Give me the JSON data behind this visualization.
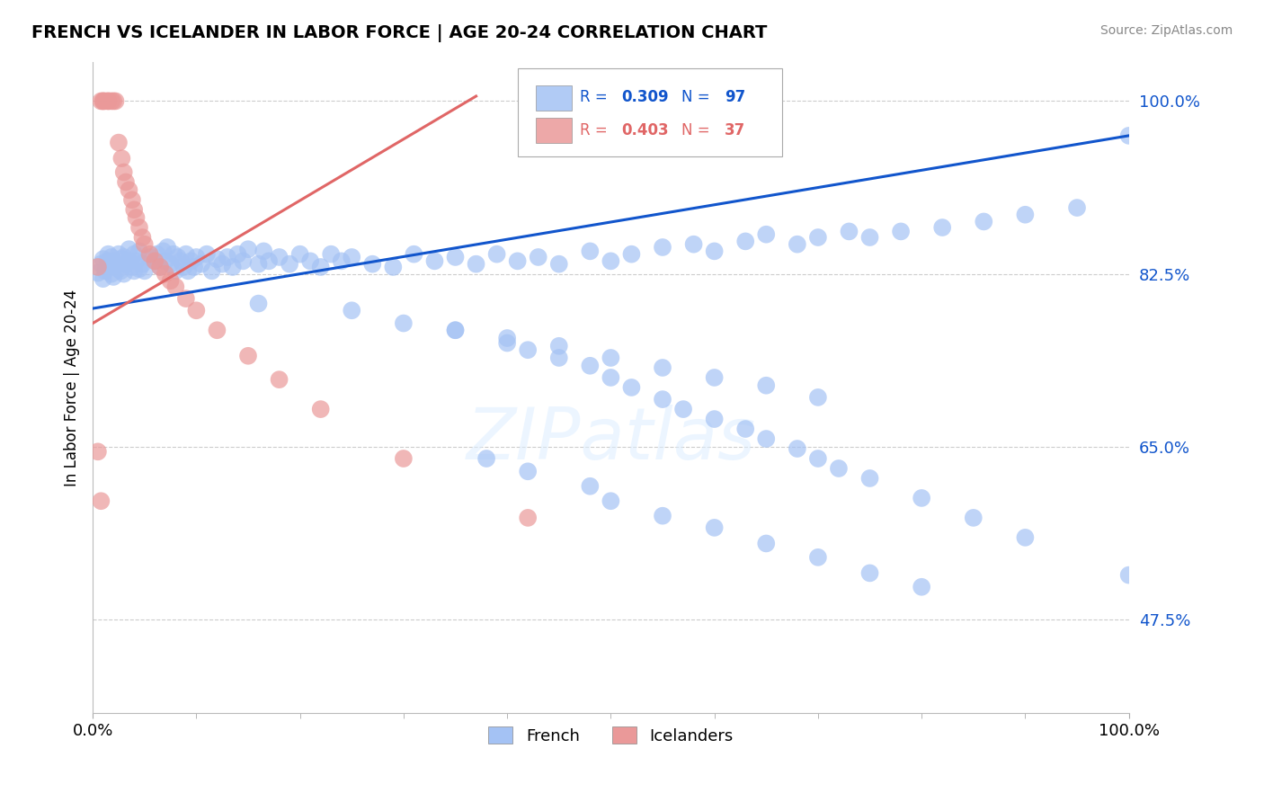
{
  "title": "FRENCH VS ICELANDER IN LABOR FORCE | AGE 20-24 CORRELATION CHART",
  "source": "Source: ZipAtlas.com",
  "ylabel": "In Labor Force | Age 20-24",
  "xlim": [
    0.0,
    1.0
  ],
  "ylim": [
    0.38,
    1.04
  ],
  "yticks": [
    0.475,
    0.65,
    0.825,
    1.0
  ],
  "ytick_labels": [
    "47.5%",
    "65.0%",
    "82.5%",
    "100.0%"
  ],
  "xtick_labels": [
    "0.0%",
    "100.0%"
  ],
  "xtick_positions": [
    0.0,
    1.0
  ],
  "legend_labels": [
    "French",
    "Icelanders"
  ],
  "blue_R": 0.309,
  "blue_N": 97,
  "pink_R": 0.403,
  "pink_N": 37,
  "blue_color": "#a4c2f4",
  "pink_color": "#ea9999",
  "blue_line_color": "#1155cc",
  "pink_line_color": "#e06666",
  "blue_line": [
    0.0,
    0.79,
    1.0,
    0.965
  ],
  "pink_line": [
    0.0,
    0.775,
    0.37,
    1.005
  ],
  "blue_points_x": [
    0.005,
    0.008,
    0.01,
    0.01,
    0.012,
    0.014,
    0.015,
    0.015,
    0.018,
    0.018,
    0.02,
    0.02,
    0.022,
    0.025,
    0.025,
    0.027,
    0.028,
    0.03,
    0.03,
    0.032,
    0.035,
    0.035,
    0.038,
    0.04,
    0.04,
    0.042,
    0.045,
    0.045,
    0.048,
    0.05,
    0.055,
    0.06,
    0.062,
    0.065,
    0.068,
    0.07,
    0.072,
    0.075,
    0.078,
    0.08,
    0.082,
    0.085,
    0.088,
    0.09,
    0.092,
    0.095,
    0.098,
    0.1,
    0.105,
    0.11,
    0.115,
    0.12,
    0.125,
    0.13,
    0.135,
    0.14,
    0.145,
    0.15,
    0.16,
    0.165,
    0.17,
    0.18,
    0.19,
    0.2,
    0.21,
    0.22,
    0.23,
    0.24,
    0.25,
    0.27,
    0.29,
    0.31,
    0.33,
    0.35,
    0.37,
    0.39,
    0.41,
    0.43,
    0.45,
    0.48,
    0.5,
    0.52,
    0.55,
    0.58,
    0.6,
    0.63,
    0.65,
    0.68,
    0.7,
    0.73,
    0.75,
    0.78,
    0.82,
    0.86,
    0.9,
    0.95,
    1.0
  ],
  "blue_points_y": [
    0.826,
    0.835,
    0.82,
    0.84,
    0.828,
    0.838,
    0.832,
    0.845,
    0.825,
    0.842,
    0.822,
    0.838,
    0.835,
    0.83,
    0.845,
    0.828,
    0.84,
    0.825,
    0.842,
    0.835,
    0.838,
    0.85,
    0.832,
    0.828,
    0.845,
    0.838,
    0.83,
    0.848,
    0.835,
    0.828,
    0.842,
    0.838,
    0.845,
    0.832,
    0.848,
    0.838,
    0.852,
    0.835,
    0.845,
    0.828,
    0.842,
    0.838,
    0.832,
    0.845,
    0.828,
    0.838,
    0.832,
    0.842,
    0.835,
    0.845,
    0.828,
    0.84,
    0.835,
    0.842,
    0.832,
    0.845,
    0.838,
    0.85,
    0.835,
    0.848,
    0.838,
    0.842,
    0.835,
    0.845,
    0.838,
    0.832,
    0.845,
    0.838,
    0.842,
    0.835,
    0.832,
    0.845,
    0.838,
    0.842,
    0.835,
    0.845,
    0.838,
    0.842,
    0.835,
    0.848,
    0.838,
    0.845,
    0.852,
    0.855,
    0.848,
    0.858,
    0.865,
    0.855,
    0.862,
    0.868,
    0.862,
    0.868,
    0.872,
    0.878,
    0.885,
    0.892,
    0.965
  ],
  "blue_extra_points_x": [
    0.16,
    0.25,
    0.3,
    0.35,
    0.4,
    0.45,
    0.5,
    0.55,
    0.6,
    0.65,
    0.7
  ],
  "blue_extra_points_y": [
    0.795,
    0.788,
    0.775,
    0.768,
    0.76,
    0.752,
    0.74,
    0.73,
    0.72,
    0.712,
    0.7
  ],
  "blue_low_points_x": [
    0.35,
    0.4,
    0.42,
    0.45,
    0.48,
    0.5,
    0.52,
    0.55,
    0.57,
    0.6,
    0.63,
    0.65,
    0.68,
    0.7,
    0.72,
    0.75,
    0.8,
    0.85,
    0.9,
    1.0
  ],
  "blue_low_points_y": [
    0.768,
    0.755,
    0.748,
    0.74,
    0.732,
    0.72,
    0.71,
    0.698,
    0.688,
    0.678,
    0.668,
    0.658,
    0.648,
    0.638,
    0.628,
    0.618,
    0.598,
    0.578,
    0.558,
    0.52
  ],
  "blue_scatter_low_x": [
    0.38,
    0.42,
    0.48,
    0.5,
    0.55,
    0.6,
    0.65,
    0.7,
    0.75,
    0.8
  ],
  "blue_scatter_low_y": [
    0.638,
    0.625,
    0.61,
    0.595,
    0.58,
    0.568,
    0.552,
    0.538,
    0.522,
    0.508
  ],
  "pink_points_x": [
    0.005,
    0.008,
    0.01,
    0.01,
    0.012,
    0.015,
    0.015,
    0.018,
    0.02,
    0.022,
    0.025,
    0.028,
    0.03,
    0.032,
    0.035,
    0.038,
    0.04,
    0.042,
    0.045,
    0.048,
    0.05,
    0.055,
    0.06,
    0.065,
    0.07,
    0.075,
    0.08,
    0.09,
    0.1,
    0.12,
    0.15,
    0.18,
    0.22,
    0.3,
    0.42,
    0.005,
    0.008
  ],
  "pink_points_y": [
    0.832,
    1.0,
    1.0,
    1.0,
    1.0,
    1.0,
    1.0,
    1.0,
    1.0,
    1.0,
    0.958,
    0.942,
    0.928,
    0.918,
    0.91,
    0.9,
    0.89,
    0.882,
    0.872,
    0.862,
    0.855,
    0.845,
    0.838,
    0.832,
    0.825,
    0.818,
    0.812,
    0.8,
    0.788,
    0.768,
    0.742,
    0.718,
    0.688,
    0.638,
    0.578,
    0.645,
    0.595
  ]
}
